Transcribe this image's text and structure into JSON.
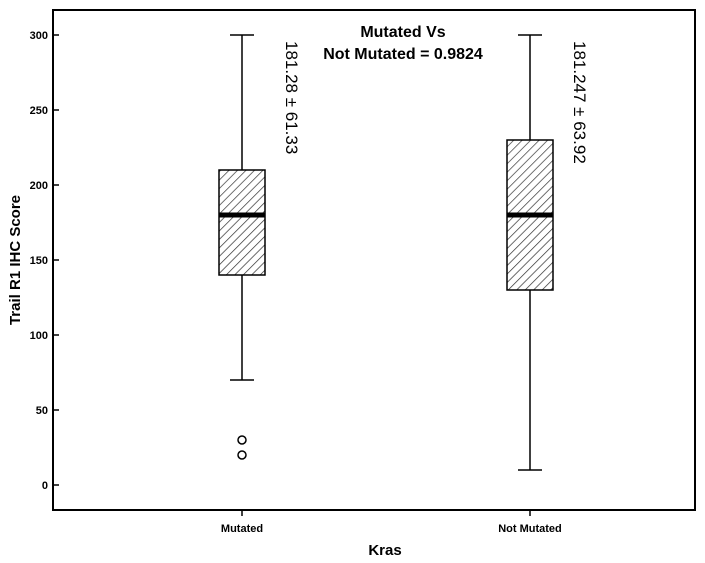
{
  "chart_data": {
    "type": "box",
    "xlabel": "Kras",
    "ylabel": "Trail R1 IHC Score",
    "ylim": [
      0,
      300
    ],
    "yticks": [
      0,
      50,
      100,
      150,
      200,
      250,
      300
    ],
    "annotation": {
      "line1": "Mutated Vs",
      "line2": "Not Mutated = 0.9824"
    },
    "grid": false,
    "fill_pattern": "diagonal-hatch",
    "groups": [
      {
        "name": "Mutated",
        "whisker_low": 70,
        "q1": 140,
        "median": 180,
        "q3": 210,
        "whisker_high": 300,
        "outliers": [
          30,
          20
        ],
        "stat_label": "181.28 ± 61.33"
      },
      {
        "name": "Not Mutated",
        "whisker_low": 10,
        "q1": 130,
        "median": 180,
        "q3": 230,
        "whisker_high": 300,
        "outliers": [],
        "stat_label": "181.247 ± 63.92"
      }
    ]
  }
}
